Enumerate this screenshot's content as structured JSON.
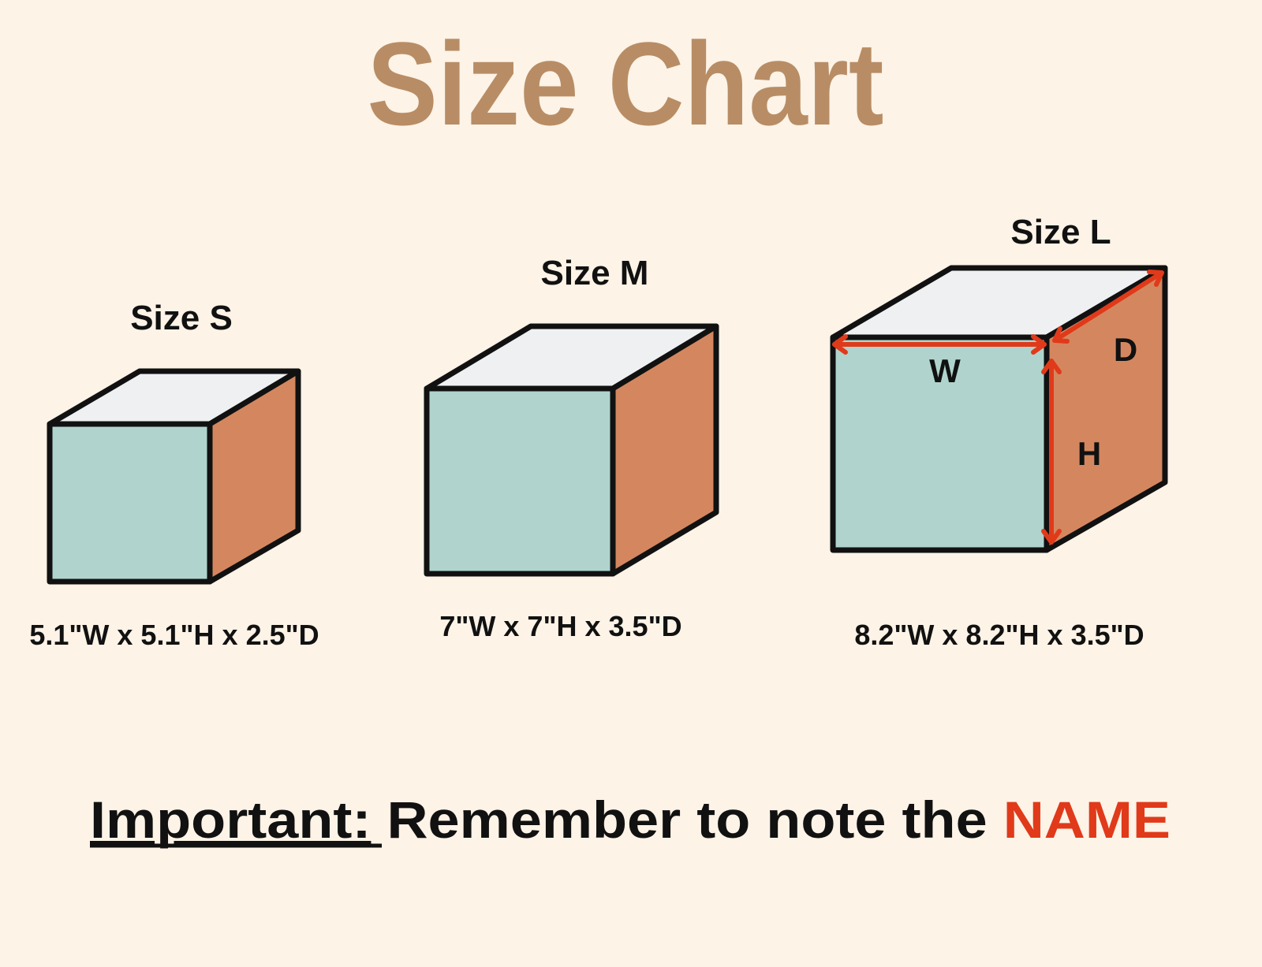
{
  "title": "Size Chart",
  "colors": {
    "background": "#fdf3e7",
    "title": "#b88d65",
    "front_face": "#b0d4cd",
    "side_face": "#d4875f",
    "top_face": "#eff0f1",
    "arrow": "#e03a1a",
    "highlight": "#e03a1a"
  },
  "sizes": [
    {
      "label": "Size S",
      "dimensions": "5.1\"W x 5.1\"H x 2.5\"D"
    },
    {
      "label": "Size M",
      "dimensions": "7\"W x 7\"H x 3.5\"D"
    },
    {
      "label": "Size L",
      "dimensions": "8.2\"W x 8.2\"H x 3.5\"D"
    }
  ],
  "axis_labels": {
    "width": "W",
    "height": "H",
    "depth": "D"
  },
  "note": {
    "prefix": "Important:",
    "body": " Remember to note the ",
    "highlight": "NAME"
  }
}
